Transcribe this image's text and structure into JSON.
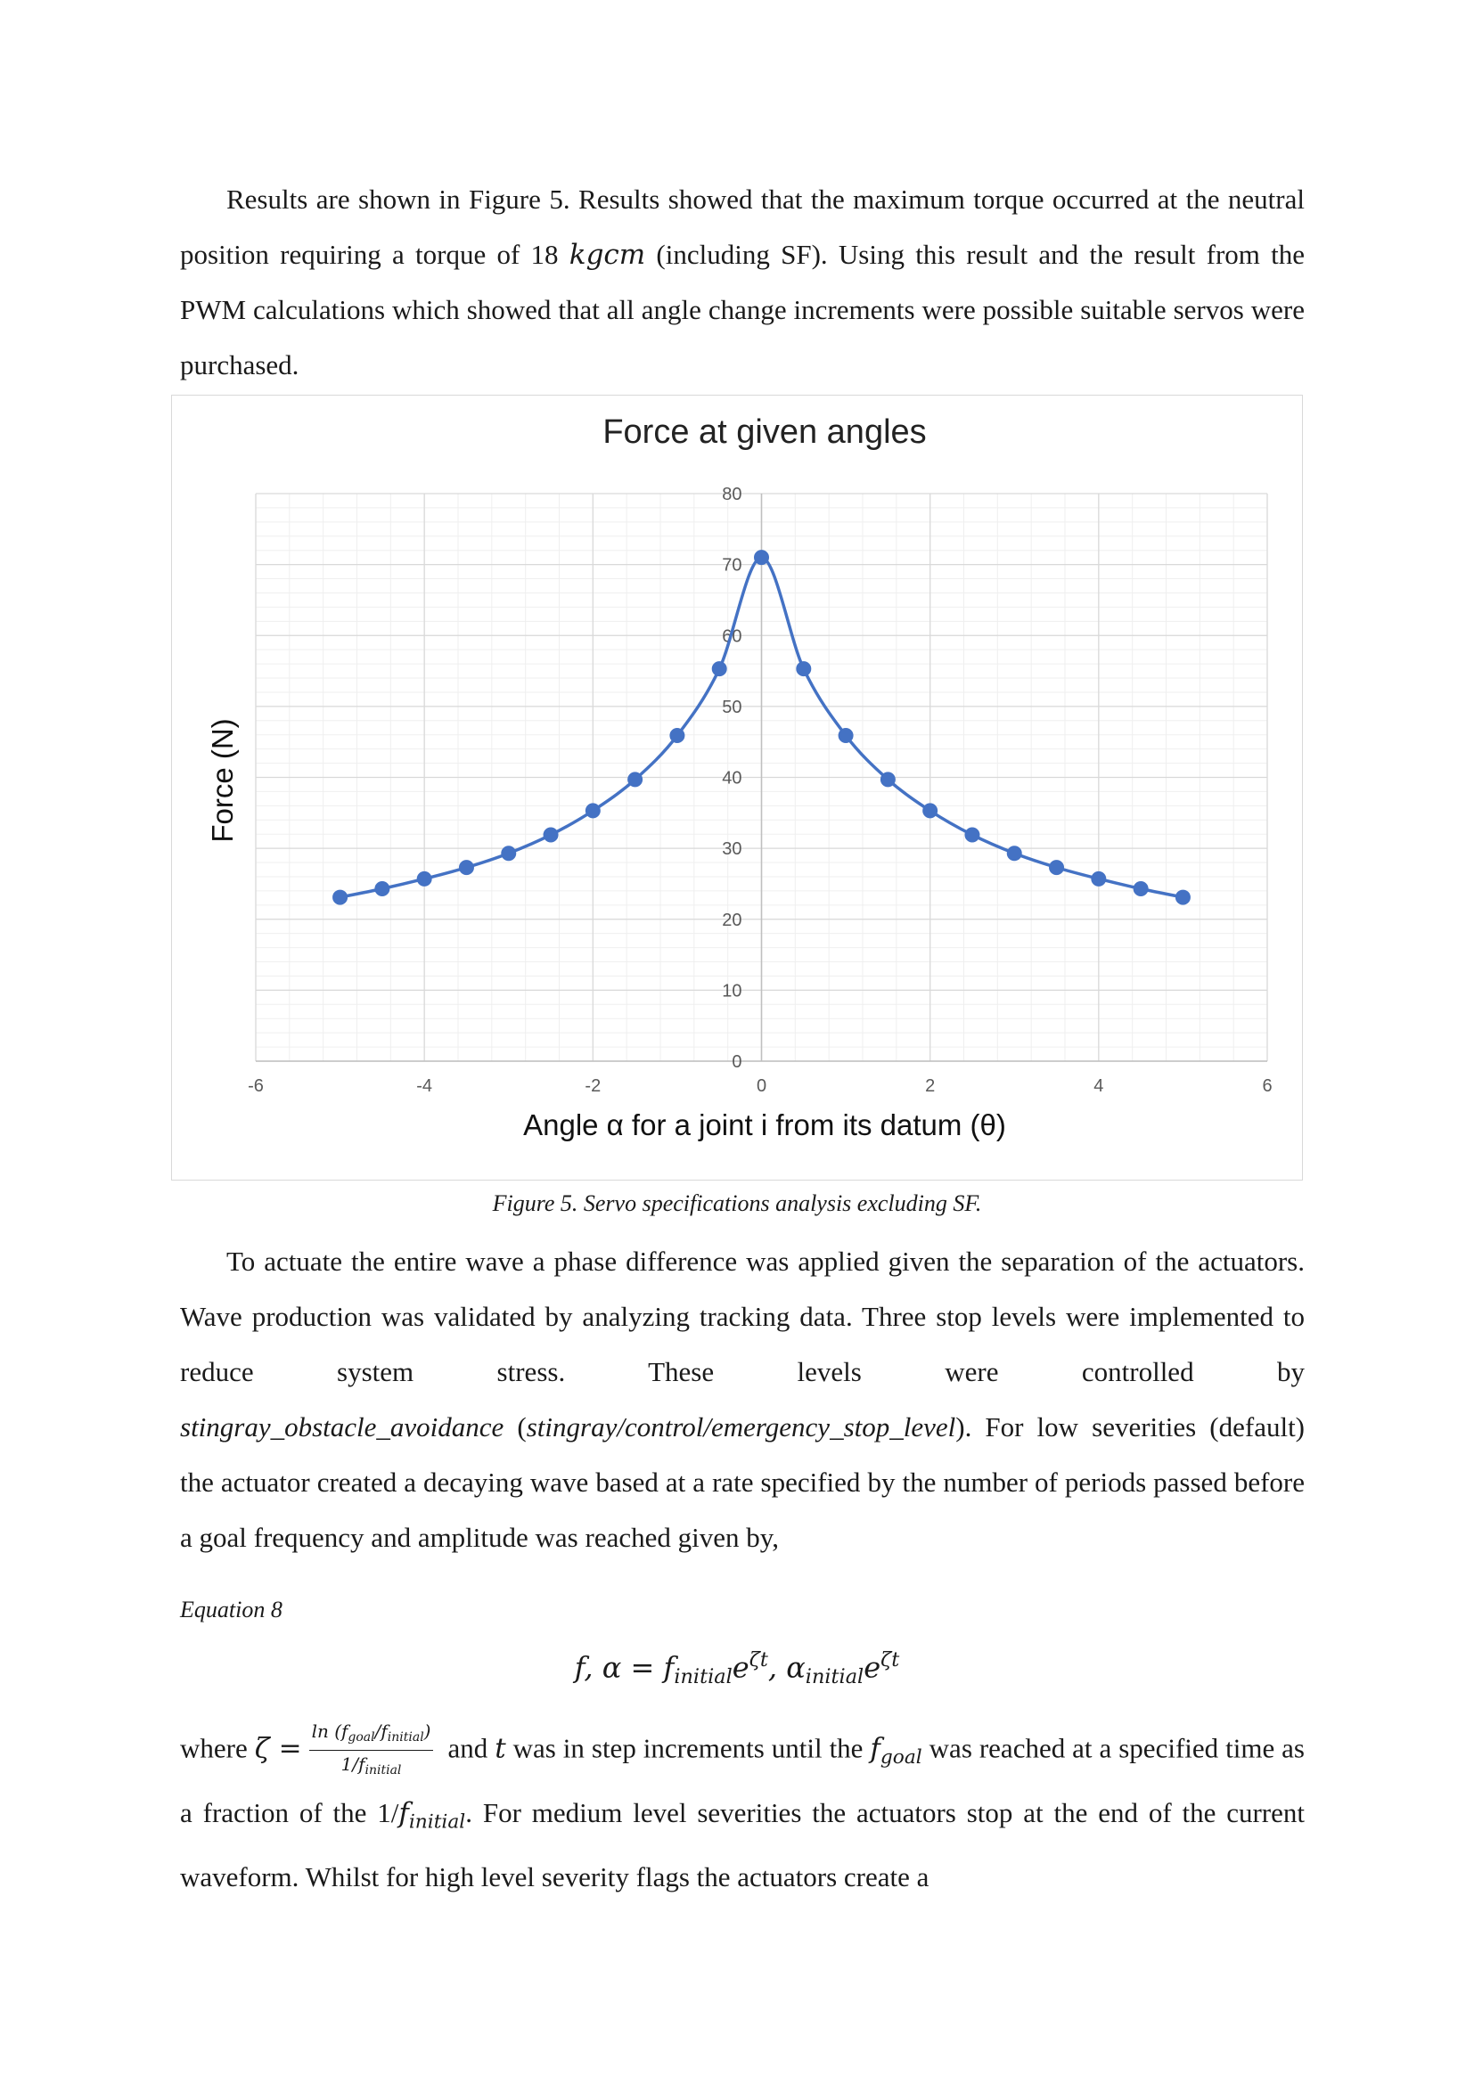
{
  "paragraph1": {
    "s1": "Results are shown in Figure 5. Results showed that the maximum torque occurred at the neutral position requiring a torque of 18 ",
    "unit": "kgcm",
    "s2": " (including SF). Using this result and the result from the PWM calculations which showed that all angle change increments were possible suitable servos were purchased."
  },
  "figure_caption": "Figure 5. Servo specifications analysis excluding SF.",
  "chart_data": {
    "type": "scatter",
    "title": "Force at given angles",
    "xlabel": "Angle α for a joint i from its datum (θ)",
    "ylabel": "Force (N)",
    "xlim": [
      -6,
      6
    ],
    "ylim": [
      0,
      80
    ],
    "x_ticks": [
      -6,
      -4,
      -2,
      0,
      2,
      4,
      6
    ],
    "y_ticks": [
      0,
      10,
      20,
      30,
      40,
      50,
      60,
      70,
      80
    ],
    "grid": true,
    "minor_grid": true,
    "smooth_line": true,
    "series_color": "#4472c4",
    "x": [
      -5,
      -4.5,
      -4,
      -3.5,
      -3,
      -2.5,
      -2,
      -1.5,
      -1,
      -0.5,
      0,
      0.5,
      1,
      1.5,
      2,
      2.5,
      3,
      3.5,
      4,
      4.5,
      5
    ],
    "y": [
      23.1,
      24.3,
      25.7,
      27.3,
      29.3,
      31.9,
      35.3,
      39.7,
      45.9,
      55.3,
      71.0,
      55.3,
      45.9,
      39.7,
      35.3,
      31.9,
      29.3,
      27.3,
      25.7,
      24.3,
      23.1
    ]
  },
  "paragraph2": {
    "line1": "To actuate the entire wave a phase difference was applied given the separation of the actuators. Wave production was validated by analyzing tracking data. Three stop levels were implemented to reduce system stress. These levels were controlled by",
    "node": "stingray_obstacle_avoidance",
    "open": " (",
    "param": "stingray/control/emergency_stop_level",
    "rest": "). For low severities (default) the actuator created a decaying wave based at a rate specified by the number of periods passed before a goal frequency and amplitude was reached given by,"
  },
  "equation_label": "Equation 8",
  "equation": {
    "lhs": "f, α = ",
    "f": "f",
    "f_sub": "initial",
    "exp1": "e",
    "exp1_sup": "ζt",
    "comma": ", ",
    "a": "α",
    "a_sub": "initial",
    "exp2": "e",
    "exp2_sup": "ζt"
  },
  "paragraph3": {
    "where": "where ",
    "zeta": "ζ =",
    "num": "ln (f",
    "num_sub1": "goal",
    "num_mid": "/f",
    "num_sub2": "initial",
    "num_end": ")",
    "den": "1/f",
    "den_sub": "initial",
    "s1": " and ",
    "t": "t",
    "s2": " was in step increments until the ",
    "fgoal": "f",
    "fgoal_sub": "goal",
    "s3": " was reached at a specified time as a fraction of the 1/",
    "finit": "f",
    "finit_sub": "initial",
    "s4": ". For medium level severities the actuators stop at the end of the current waveform. Whilst for high level severity flags the actuators create a"
  }
}
